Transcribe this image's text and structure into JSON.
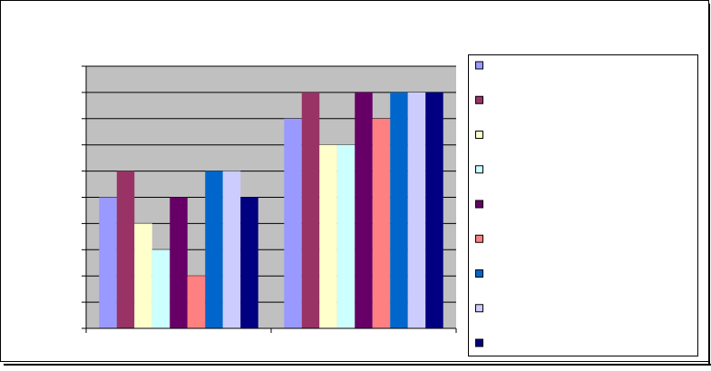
{
  "chart_data": {
    "type": "bar",
    "categories": [
      null,
      null
    ],
    "series": [
      {
        "color": "#9999ff",
        "values": [
          5,
          8
        ]
      },
      {
        "color": "#993366",
        "values": [
          6,
          9
        ]
      },
      {
        "color": "#ffffcc",
        "values": [
          4,
          7
        ]
      },
      {
        "color": "#ccffff",
        "values": [
          3,
          7
        ]
      },
      {
        "color": "#660066",
        "values": [
          5,
          9
        ]
      },
      {
        "color": "#ff8080",
        "values": [
          2,
          8
        ]
      },
      {
        "color": "#0066cc",
        "values": [
          6,
          9
        ]
      },
      {
        "color": "#ccccff",
        "values": [
          6,
          9
        ]
      },
      {
        "color": "#000080",
        "values": [
          5,
          9
        ]
      }
    ],
    "ylim": [
      0,
      10
    ],
    "yticks": [
      0,
      1,
      2,
      3,
      4,
      5,
      6,
      7,
      8,
      9,
      10
    ],
    "grid": true,
    "legend": "right"
  }
}
